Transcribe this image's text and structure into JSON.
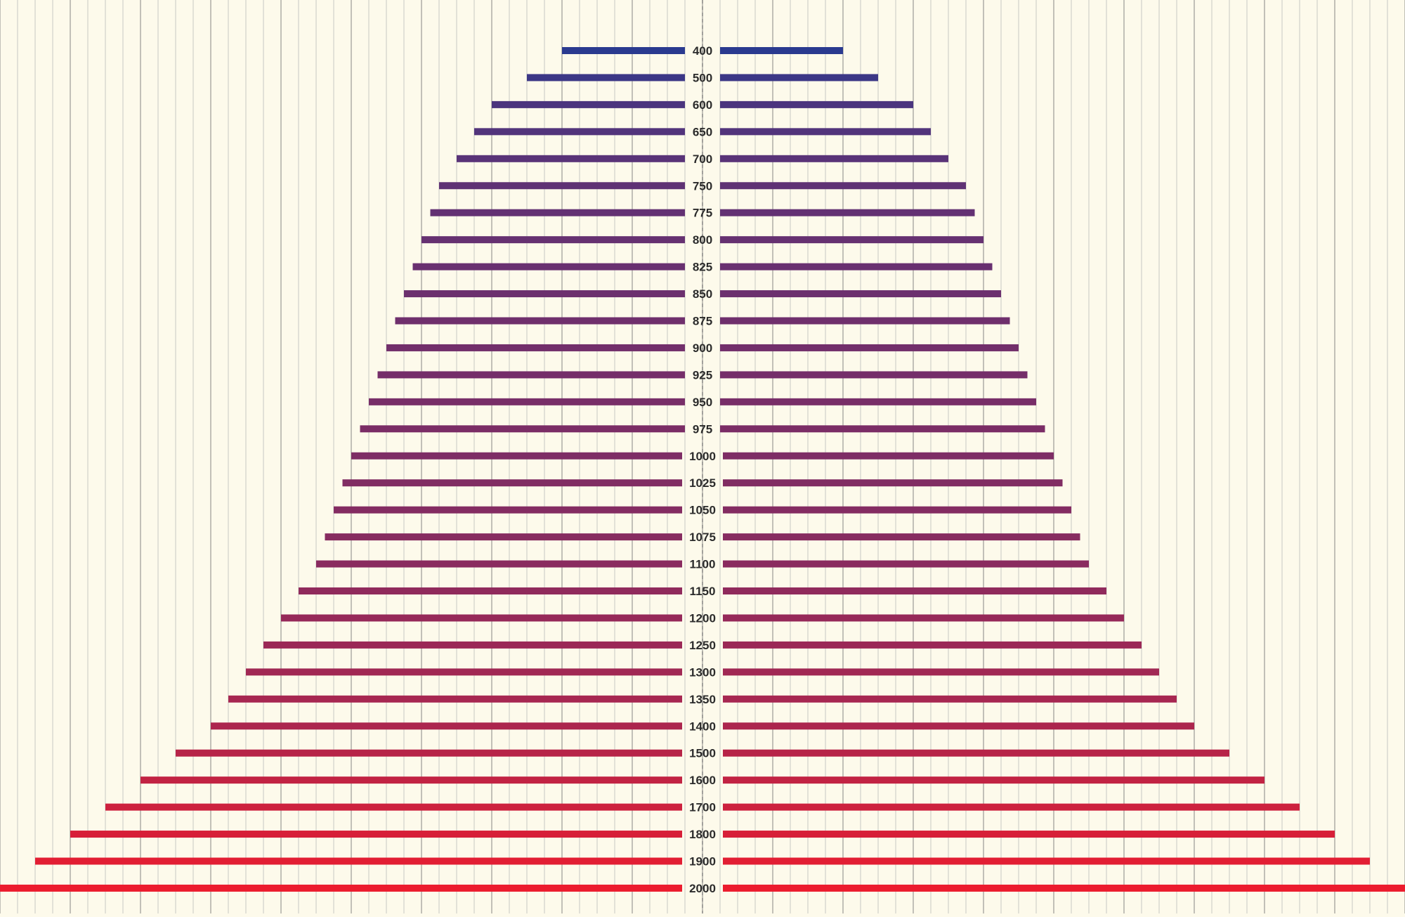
{
  "chart_data": {
    "type": "bar",
    "layout": "symmetric-diverging",
    "categories": [
      "400",
      "500",
      "600",
      "650",
      "700",
      "750",
      "775",
      "800",
      "825",
      "850",
      "875",
      "900",
      "925",
      "950",
      "975",
      "1000",
      "1025",
      "1050",
      "1075",
      "1100",
      "1150",
      "1200",
      "1250",
      "1300",
      "1350",
      "1400",
      "1500",
      "1600",
      "1700",
      "1800",
      "1900",
      "2000"
    ],
    "values": [
      400,
      500,
      600,
      650,
      700,
      750,
      775,
      800,
      825,
      850,
      875,
      900,
      925,
      950,
      975,
      1000,
      1025,
      1050,
      1075,
      1100,
      1150,
      1200,
      1250,
      1300,
      1350,
      1400,
      1500,
      1600,
      1700,
      1800,
      1900,
      2000
    ],
    "xlim": [
      -2000,
      2000
    ],
    "grid": true,
    "colors": {
      "background": "#fdfaeb",
      "grid_major": "#9a9a95",
      "grid_minor": "#c8c8c3",
      "center_line": "#8a8a88",
      "label": "#2b2b2b",
      "bar_start": "#2a3a8f",
      "bar_end": "#ec1c2e"
    }
  }
}
